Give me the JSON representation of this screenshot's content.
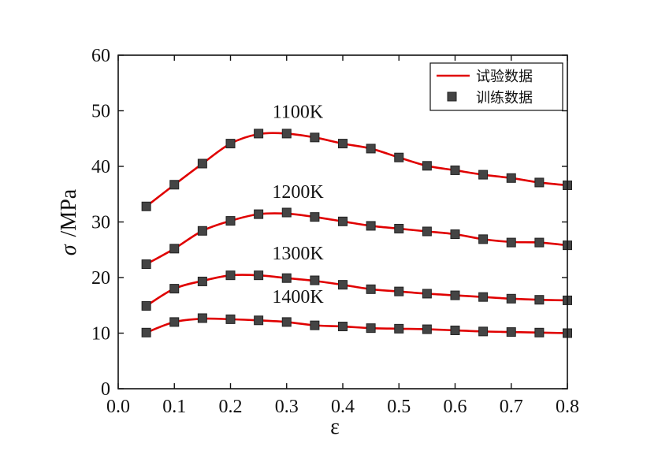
{
  "chart_data": {
    "type": "line",
    "xlabel": "ε",
    "ylabel_symbol": "σ",
    "ylabel_unit": "/MPa",
    "xlim": [
      0.0,
      0.8
    ],
    "ylim": [
      0,
      60
    ],
    "x_ticks": [
      0.0,
      0.1,
      0.2,
      0.3,
      0.4,
      0.5,
      0.6,
      0.7,
      0.8
    ],
    "x_tick_labels": [
      "0.0",
      "0.1",
      "0.2",
      "0.3",
      "0.4",
      "0.5",
      "0.6",
      "0.7",
      "0.8"
    ],
    "y_ticks": [
      0,
      10,
      20,
      30,
      40,
      50,
      60
    ],
    "y_tick_labels": [
      "0",
      "10",
      "20",
      "30",
      "40",
      "50",
      "60"
    ],
    "grid": false,
    "legend_position": "top-right",
    "legend": [
      {
        "label": "试验数据",
        "marker": "line",
        "color": "#e00000"
      },
      {
        "label": "训练数据",
        "marker": "square",
        "color": "#444444"
      }
    ],
    "line_color": "#e00000",
    "marker_color": "#444444",
    "series": [
      {
        "label": "1100K",
        "x": [
          0.05,
          0.1,
          0.15,
          0.2,
          0.25,
          0.3,
          0.35,
          0.4,
          0.45,
          0.5,
          0.55,
          0.6,
          0.65,
          0.7,
          0.75,
          0.8
        ],
        "test_values": [
          32.8,
          36.7,
          40.5,
          44.1,
          45.8,
          45.9,
          45.2,
          44.1,
          43.2,
          41.6,
          40.1,
          39.3,
          38.5,
          37.9,
          37.1,
          36.6
        ],
        "train_values": [
          32.8,
          36.7,
          40.5,
          44.1,
          45.9,
          45.9,
          45.2,
          44.1,
          43.2,
          41.6,
          40.1,
          39.3,
          38.5,
          37.9,
          37.1,
          36.6
        ]
      },
      {
        "label": "1200K",
        "x": [
          0.05,
          0.1,
          0.15,
          0.2,
          0.25,
          0.3,
          0.35,
          0.4,
          0.45,
          0.5,
          0.55,
          0.6,
          0.65,
          0.7,
          0.75,
          0.8
        ],
        "test_values": [
          22.4,
          25.2,
          28.4,
          30.2,
          31.4,
          31.5,
          30.9,
          30.1,
          29.3,
          28.8,
          28.3,
          27.8,
          26.9,
          26.4,
          26.3,
          25.8
        ],
        "train_values": [
          22.4,
          25.2,
          28.4,
          30.2,
          31.4,
          31.7,
          30.9,
          30.1,
          29.3,
          28.8,
          28.3,
          27.8,
          26.9,
          26.3,
          26.3,
          25.8
        ]
      },
      {
        "label": "1300K",
        "x": [
          0.05,
          0.1,
          0.15,
          0.2,
          0.25,
          0.3,
          0.35,
          0.4,
          0.45,
          0.5,
          0.55,
          0.6,
          0.65,
          0.7,
          0.75,
          0.8
        ],
        "test_values": [
          14.9,
          18.0,
          19.4,
          20.4,
          20.4,
          19.9,
          19.4,
          18.7,
          17.9,
          17.5,
          17.1,
          16.8,
          16.5,
          16.2,
          16.0,
          15.9
        ],
        "train_values": [
          14.9,
          18.0,
          19.3,
          20.4,
          20.4,
          19.9,
          19.5,
          18.7,
          17.9,
          17.5,
          17.1,
          16.8,
          16.5,
          16.2,
          16.0,
          15.9
        ]
      },
      {
        "label": "1400K",
        "x": [
          0.05,
          0.1,
          0.15,
          0.2,
          0.25,
          0.3,
          0.35,
          0.4,
          0.45,
          0.5,
          0.55,
          0.6,
          0.65,
          0.7,
          0.75,
          0.8
        ],
        "test_values": [
          10.1,
          12.0,
          12.6,
          12.5,
          12.3,
          12.0,
          11.4,
          11.2,
          10.9,
          10.8,
          10.7,
          10.5,
          10.3,
          10.2,
          10.1,
          10.0
        ],
        "train_values": [
          10.1,
          12.0,
          12.7,
          12.5,
          12.3,
          12.0,
          11.4,
          11.2,
          10.9,
          10.8,
          10.7,
          10.5,
          10.3,
          10.2,
          10.1,
          10.0
        ]
      }
    ]
  }
}
